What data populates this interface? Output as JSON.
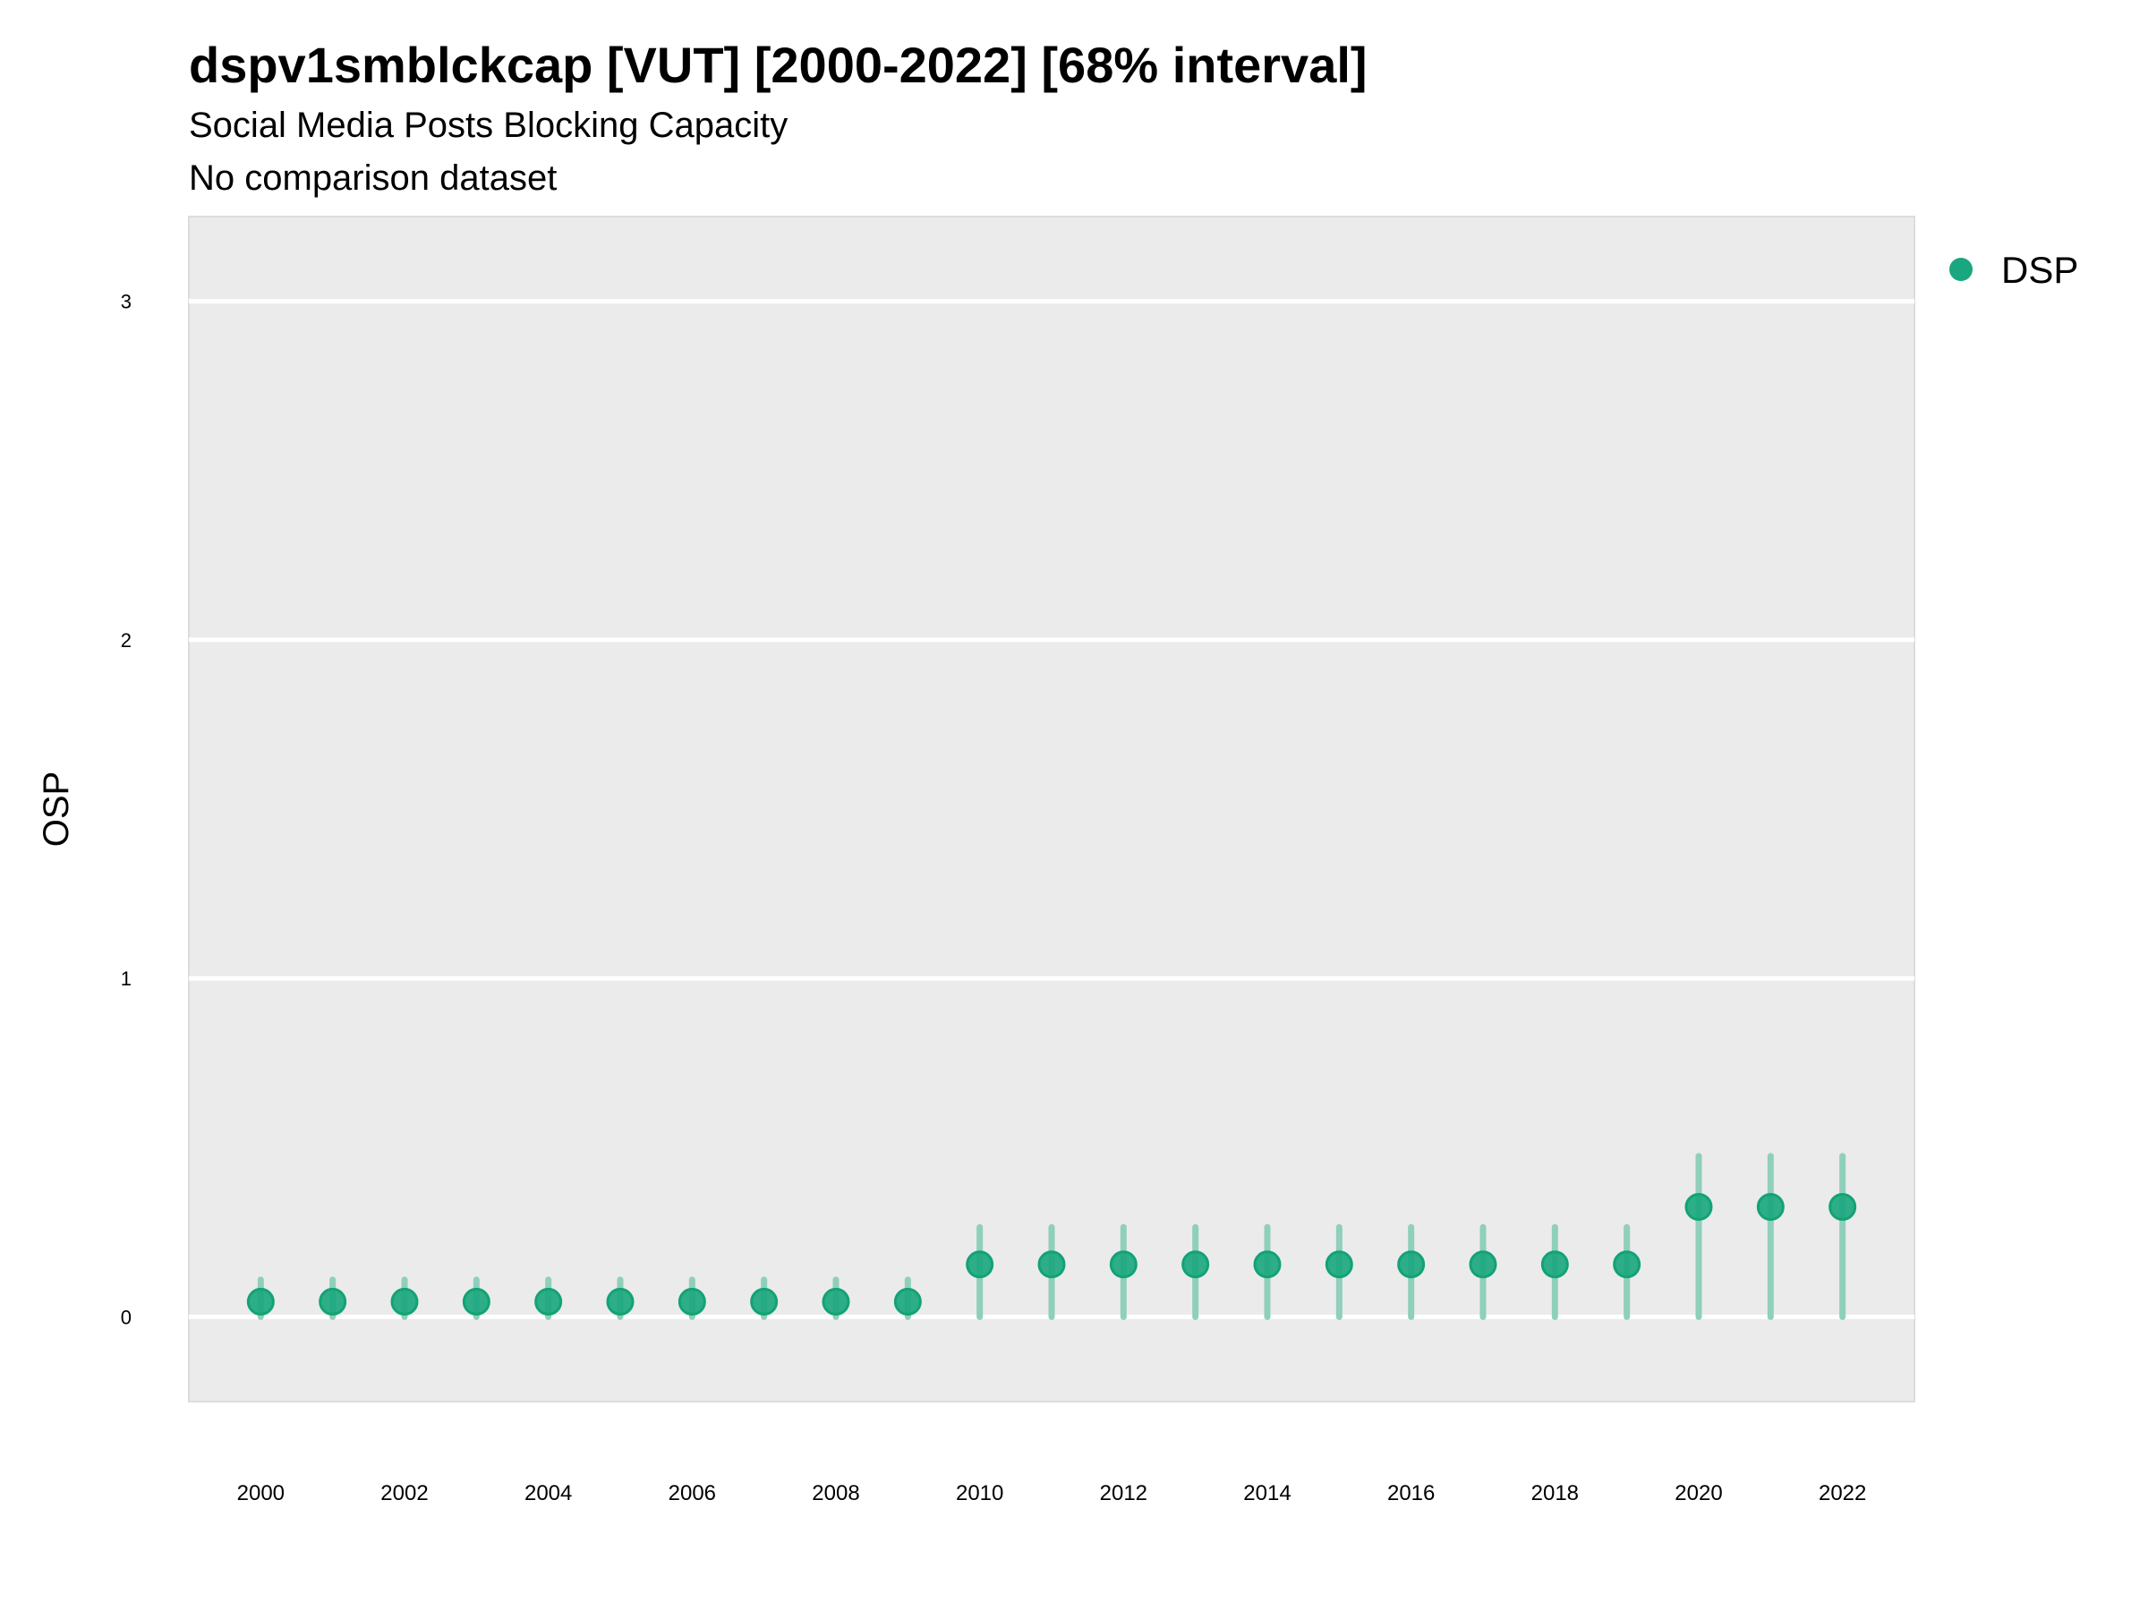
{
  "chart_data": {
    "type": "scatter",
    "title": "dspv1smblckcap [VUT] [2000-2022] [68% interval]",
    "subtitle": "Social Media Posts Blocking Capacity",
    "caption": "No comparison dataset",
    "xlabel": "",
    "ylabel": "OSP",
    "xlim": [
      1999,
      2023
    ],
    "ylim": [
      -0.25,
      3.25
    ],
    "x_ticks": [
      2000,
      2002,
      2004,
      2006,
      2008,
      2010,
      2012,
      2014,
      2016,
      2018,
      2020,
      2022
    ],
    "y_ticks": [
      0,
      1,
      2,
      3
    ],
    "grid": true,
    "legend_position": "right",
    "colors": {
      "point": "#1aa67e",
      "interval": "#8fcfbb",
      "panel": "#ebebeb",
      "grid": "#ffffff"
    },
    "series": [
      {
        "name": "DSP",
        "x": [
          2000,
          2001,
          2002,
          2003,
          2004,
          2005,
          2006,
          2007,
          2008,
          2009,
          2010,
          2011,
          2012,
          2013,
          2014,
          2015,
          2016,
          2017,
          2018,
          2019,
          2020,
          2021,
          2022
        ],
        "y": [
          0.045,
          0.045,
          0.045,
          0.045,
          0.045,
          0.045,
          0.045,
          0.045,
          0.045,
          0.045,
          0.155,
          0.155,
          0.155,
          0.155,
          0.155,
          0.155,
          0.155,
          0.155,
          0.155,
          0.155,
          0.325,
          0.325,
          0.325
        ],
        "lower": [
          0,
          0,
          0,
          0,
          0,
          0,
          0,
          0,
          0,
          0,
          0,
          0,
          0,
          0,
          0,
          0,
          0,
          0,
          0,
          0,
          0,
          0,
          0
        ],
        "upper": [
          0.11,
          0.11,
          0.11,
          0.11,
          0.11,
          0.11,
          0.11,
          0.11,
          0.11,
          0.11,
          0.265,
          0.265,
          0.265,
          0.265,
          0.265,
          0.265,
          0.265,
          0.265,
          0.265,
          0.265,
          0.475,
          0.475,
          0.475
        ]
      }
    ]
  }
}
